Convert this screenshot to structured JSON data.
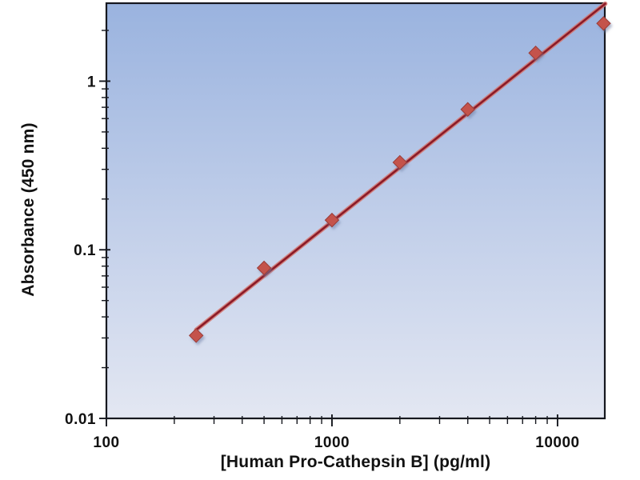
{
  "chart_data": {
    "type": "scatter",
    "title": "",
    "xlabel": "[Human Pro-Cathepsin B] (pg/ml)",
    "ylabel": "Absorbance (450 nm)",
    "x_scale": "log",
    "y_scale": "log",
    "xlim": [
      100,
      16200
    ],
    "ylim": [
      0.01,
      2.9
    ],
    "grid": false,
    "legend_position": "none",
    "x_ticks": [
      {
        "value": 100,
        "label": "100"
      },
      {
        "value": 1000,
        "label": "1000"
      },
      {
        "value": 10000,
        "label": "10000"
      }
    ],
    "y_ticks": [
      {
        "value": 1,
        "label": "1"
      },
      {
        "value": 0.1,
        "label": "0.1"
      },
      {
        "value": 0.01,
        "label": "0.01"
      }
    ],
    "series": [
      {
        "name": "standard-curve-points",
        "type": "scatter",
        "marker": "diamond",
        "points": [
          {
            "x": 250,
            "y": 0.031
          },
          {
            "x": 500,
            "y": 0.078
          },
          {
            "x": 1000,
            "y": 0.15
          },
          {
            "x": 2000,
            "y": 0.33
          },
          {
            "x": 4000,
            "y": 0.68
          },
          {
            "x": 8000,
            "y": 1.47
          },
          {
            "x": 16000,
            "y": 2.2
          }
        ]
      },
      {
        "name": "fitted-trend-line",
        "type": "line",
        "points": [
          {
            "x": 250,
            "y": 0.0335
          },
          {
            "x": 16280,
            "y": 2.88
          }
        ]
      }
    ],
    "colors": {
      "marker_fill": "#c4534c",
      "marker_stroke": "#9a3a34",
      "line_core": "#8c1b28",
      "line_halo": "#d4766f",
      "axis": "#16181f",
      "text": "#111111",
      "plot_bg_top": "#9ab3df",
      "plot_bg_bottom": "#e3e7f2",
      "page_bg": "#ffffff"
    }
  }
}
